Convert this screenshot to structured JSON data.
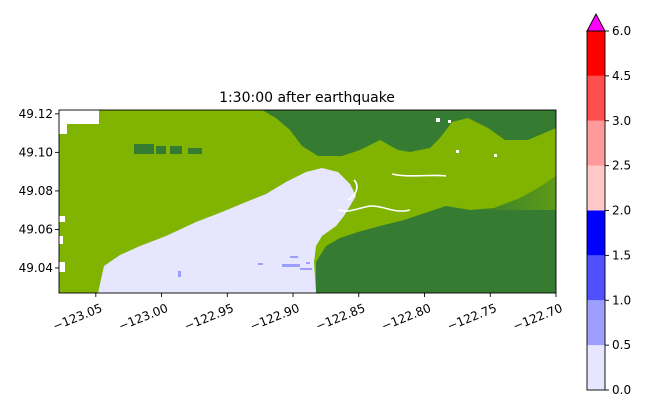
{
  "chart_data": {
    "type": "heatmap",
    "title": "1:30:00 after earthquake",
    "xlabel": "",
    "ylabel": "",
    "xlim": [
      -123.078,
      -122.7
    ],
    "ylim": [
      49.027,
      49.122
    ],
    "xticks": [
      -123.05,
      -123.0,
      -122.95,
      -122.9,
      -122.85,
      -122.8,
      -122.75,
      -122.7
    ],
    "xtick_labels": [
      "−123.05",
      "−123.00",
      "−122.95",
      "−122.90",
      "−122.85",
      "−122.80",
      "−122.75",
      "−122.70"
    ],
    "yticks": [
      49.04,
      49.06,
      49.08,
      49.1,
      49.12
    ],
    "ytick_labels": [
      "49.04",
      "49.06",
      "49.08",
      "49.10",
      "49.12"
    ],
    "grid": false,
    "colorbar": {
      "levels": [
        0.0,
        0.5,
        1.0,
        1.5,
        2.0,
        2.5,
        3.0,
        4.5,
        6.0
      ],
      "labels": [
        "0.0",
        "0.5",
        "1.0",
        "1.5",
        "2.0",
        "2.5",
        "3.0",
        "4.5",
        "6.0"
      ],
      "colors": [
        "#e6e6ff",
        "#9e9eff",
        "#5050ff",
        "#0000ff",
        "#ffc8c8",
        "#ff9a9a",
        "#ff4e4e",
        "#ff0000"
      ],
      "extend_max_color": "#ff00ff"
    },
    "colors": {
      "land_light": "#80b400",
      "land_dark": "#357c32",
      "water_low": "#e6e6ff",
      "water_mid": "#9e9eff",
      "nodata": "#ffffff"
    }
  }
}
